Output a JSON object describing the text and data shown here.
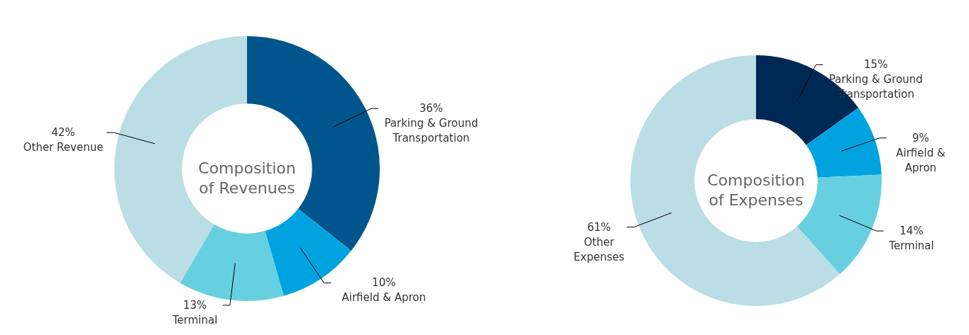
{
  "chart_data": [
    {
      "type": "donut",
      "title": "Composition of Revenues",
      "categories": [
        "Parking & Ground\nTransportation",
        "Airfield & Apron",
        "Terminal",
        "Other Revenue"
      ],
      "values": [
        36,
        10,
        13,
        42
      ],
      "value_labels": [
        "36%",
        "10%",
        "13%",
        "42%"
      ],
      "colors": [
        "#00558c",
        "#00a3e0",
        "#66d0e0",
        "#bbdde5"
      ]
    },
    {
      "type": "donut",
      "title": "Composition of Expenses",
      "categories": [
        "Parking & Ground\nTransportation",
        "Airfield &\nApron",
        "Terminal",
        "Other\nExpenses"
      ],
      "values": [
        15,
        9,
        14,
        61
      ],
      "value_labels": [
        "15%",
        "9%",
        "14%",
        "61%"
      ],
      "colors": [
        "#002855",
        "#00a3e0",
        "#66d0e0",
        "#bbdde5"
      ]
    }
  ]
}
